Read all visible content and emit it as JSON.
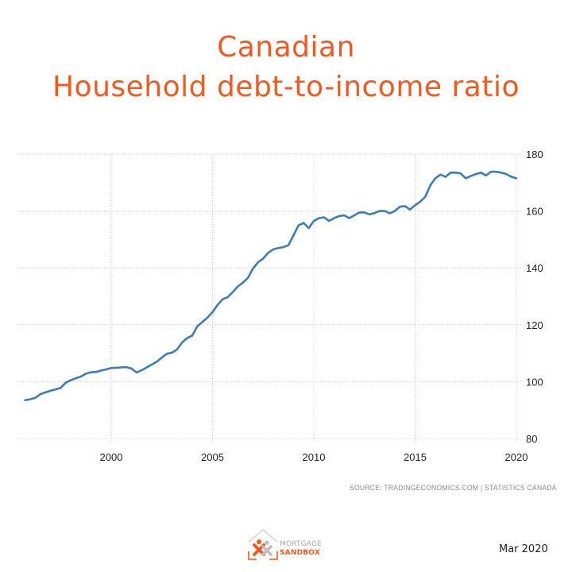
{
  "header": {
    "title_line1": "Canadian",
    "title_line2": "Household debt-to-income ratio"
  },
  "footer": {
    "source": "SOURCE:  TRADINGECONOMICS.COM  |  STATISTICS CANADA",
    "date": "Mar 2020",
    "logo": {
      "line1": "MORTGAGE",
      "line2": "SANDBOX",
      "icon": "house-people-icon"
    }
  },
  "colors": {
    "title": "#f15a1f",
    "line": "#3b7db8",
    "grid": "#d6d6d6",
    "logo_orange": "#f15a1f",
    "logo_gray": "#a8a8a8"
  },
  "chart_data": {
    "type": "line",
    "title": "Canadian Household debt-to-income ratio",
    "xlabel": "",
    "ylabel": "",
    "xlim": [
      1995.5,
      2020.2
    ],
    "ylim": [
      80,
      180
    ],
    "yticks": [
      80,
      100,
      120,
      140,
      160,
      180
    ],
    "xticks": [
      2000,
      2005,
      2010,
      2015,
      2020
    ],
    "y_axis_position": "right",
    "grid": true,
    "legend": "none",
    "source": "tradingeconomics.com | Statistics Canada",
    "series": [
      {
        "name": "Household debt-to-income ratio",
        "x": [
          1995.75,
          1996.0,
          1996.25,
          1996.5,
          1996.75,
          1997.0,
          1997.25,
          1997.5,
          1997.75,
          1998.0,
          1998.25,
          1998.5,
          1998.75,
          1999.0,
          1999.25,
          1999.5,
          1999.75,
          2000.0,
          2000.25,
          2000.5,
          2000.75,
          2001.0,
          2001.25,
          2001.5,
          2001.75,
          2002.0,
          2002.25,
          2002.5,
          2002.75,
          2003.0,
          2003.25,
          2003.5,
          2003.75,
          2004.0,
          2004.25,
          2004.5,
          2004.75,
          2005.0,
          2005.25,
          2005.5,
          2005.75,
          2006.0,
          2006.25,
          2006.5,
          2006.75,
          2007.0,
          2007.25,
          2007.5,
          2007.75,
          2008.0,
          2008.25,
          2008.5,
          2008.75,
          2009.0,
          2009.25,
          2009.5,
          2009.75,
          2010.0,
          2010.25,
          2010.5,
          2010.75,
          2011.0,
          2011.25,
          2011.5,
          2011.75,
          2012.0,
          2012.25,
          2012.5,
          2012.75,
          2013.0,
          2013.25,
          2013.5,
          2013.75,
          2014.0,
          2014.25,
          2014.5,
          2014.75,
          2015.0,
          2015.25,
          2015.5,
          2015.75,
          2016.0,
          2016.25,
          2016.5,
          2016.75,
          2017.0,
          2017.25,
          2017.5,
          2017.75,
          2018.0,
          2018.25,
          2018.5,
          2018.75,
          2019.0,
          2019.25,
          2019.5,
          2019.75,
          2020.0
        ],
        "values": [
          93.5,
          93.8,
          94.3,
          95.6,
          96.2,
          96.8,
          97.3,
          97.8,
          99.6,
          100.5,
          101.2,
          101.8,
          102.8,
          103.3,
          103.4,
          103.9,
          104.3,
          104.8,
          104.9,
          105.0,
          105.1,
          104.6,
          103.2,
          104.0,
          105.0,
          106.0,
          107.0,
          108.5,
          109.8,
          110.2,
          111.3,
          113.8,
          115.3,
          116.2,
          119.5,
          121.0,
          122.5,
          124.5,
          127.0,
          129.0,
          129.7,
          131.5,
          133.5,
          134.8,
          136.5,
          139.8,
          142.0,
          143.3,
          145.3,
          146.5,
          147.0,
          147.3,
          148.0,
          151.5,
          155.0,
          155.8,
          154.0,
          156.5,
          157.5,
          157.8,
          156.5,
          157.5,
          158.2,
          158.5,
          157.5,
          158.5,
          159.5,
          159.5,
          158.8,
          159.3,
          160.0,
          160.0,
          159.2,
          160.0,
          161.5,
          161.7,
          160.5,
          162.0,
          163.3,
          165.0,
          169.0,
          171.5,
          172.8,
          172.0,
          173.5,
          173.5,
          173.2,
          171.5,
          172.3,
          173.0,
          173.5,
          172.5,
          173.8,
          173.8,
          173.5,
          173.0,
          172.0,
          171.5
        ]
      }
    ]
  }
}
